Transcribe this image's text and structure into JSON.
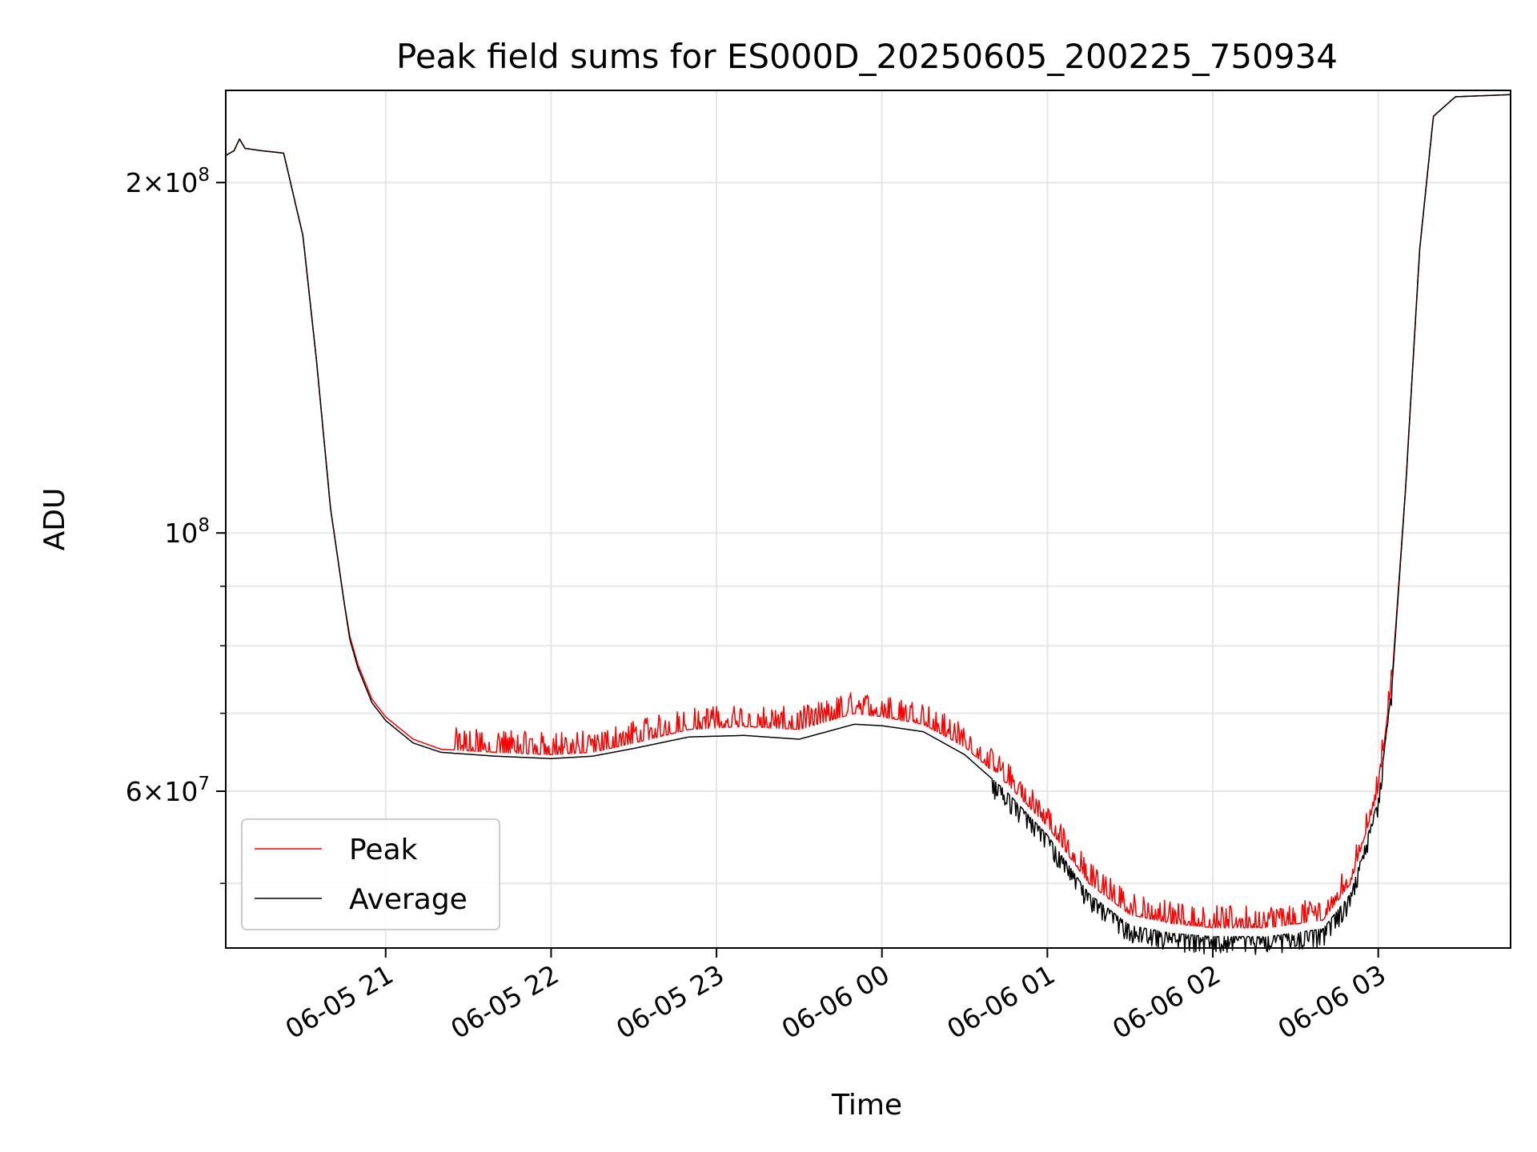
{
  "chart_data": {
    "type": "line",
    "title": "Peak field sums for ES000D_20250605_200225_750934",
    "xlabel": "Time",
    "ylabel": "ADU",
    "yscale": "log",
    "ylim": [
      44000000,
      240000000
    ],
    "xlim": [
      "2025-06-05 20:02",
      "2025-06-06 03:48"
    ],
    "grid": true,
    "legend_position": "lower-left",
    "x_ticks": [
      {
        "x": "2025-06-05 21:00",
        "label": "06-05 21"
      },
      {
        "x": "2025-06-05 22:00",
        "label": "06-05 22"
      },
      {
        "x": "2025-06-05 23:00",
        "label": "06-05 23"
      },
      {
        "x": "2025-06-06 00:00",
        "label": "06-06 00"
      },
      {
        "x": "2025-06-06 01:00",
        "label": "06-06 01"
      },
      {
        "x": "2025-06-06 02:00",
        "label": "06-06 02"
      },
      {
        "x": "2025-06-06 03:00",
        "label": "06-06 03"
      }
    ],
    "y_major_ticks": [
      {
        "y": 60000000,
        "mant": "6",
        "exp": "7"
      },
      {
        "y": 100000000,
        "mant": "",
        "exp": "8"
      },
      {
        "y": 200000000,
        "mant": "2",
        "exp": "8"
      }
    ],
    "y_minor_ticks": [
      50000000,
      70000000,
      80000000,
      90000000
    ],
    "series": [
      {
        "name": "Peak",
        "color": "#ff0000",
        "noise": {
          "start": "2025-06-05 21:25",
          "amplitude": 0.045,
          "direction": "up"
        },
        "points": [
          [
            "2025-06-05 20:02",
            211000000
          ],
          [
            "2025-06-05 20:05",
            213000000
          ],
          [
            "2025-06-05 20:07",
            218000000
          ],
          [
            "2025-06-05 20:09",
            214000000
          ],
          [
            "2025-06-05 20:15",
            213000000
          ],
          [
            "2025-06-05 20:23",
            212000000
          ],
          [
            "2025-06-05 20:30",
            180000000
          ],
          [
            "2025-06-05 20:35",
            140000000
          ],
          [
            "2025-06-05 20:40",
            105000000
          ],
          [
            "2025-06-05 20:45",
            87000000
          ],
          [
            "2025-06-05 20:47",
            81500000
          ],
          [
            "2025-06-05 20:50",
            77000000
          ],
          [
            "2025-06-05 20:55",
            72000000
          ],
          [
            "2025-06-05 21:00",
            69500000
          ],
          [
            "2025-06-05 21:10",
            66500000
          ],
          [
            "2025-06-05 21:20",
            65200000
          ],
          [
            "2025-06-05 21:40",
            64800000
          ],
          [
            "2025-06-05 22:00",
            64500000
          ],
          [
            "2025-06-05 22:15",
            64800000
          ],
          [
            "2025-06-05 22:30",
            66000000
          ],
          [
            "2025-06-05 22:50",
            67800000
          ],
          [
            "2025-06-05 23:10",
            68200000
          ],
          [
            "2025-06-05 23:30",
            67800000
          ],
          [
            "2025-06-05 23:50",
            70000000
          ],
          [
            "2025-06-06 00:00",
            69500000
          ],
          [
            "2025-06-06 00:15",
            68500000
          ],
          [
            "2025-06-06 00:30",
            65500000
          ],
          [
            "2025-06-06 00:45",
            61000000
          ],
          [
            "2025-06-06 01:00",
            56000000
          ],
          [
            "2025-06-06 01:15",
            50000000
          ],
          [
            "2025-06-06 01:30",
            47000000
          ],
          [
            "2025-06-06 01:45",
            46200000
          ],
          [
            "2025-06-06 02:00",
            45800000
          ],
          [
            "2025-06-06 02:20",
            45800000
          ],
          [
            "2025-06-06 02:40",
            46500000
          ],
          [
            "2025-06-06 02:50",
            50000000
          ],
          [
            "2025-06-06 03:00",
            60000000
          ],
          [
            "2025-06-06 03:05",
            75000000
          ],
          [
            "2025-06-06 03:10",
            110000000
          ],
          [
            "2025-06-06 03:15",
            175000000
          ],
          [
            "2025-06-06 03:20",
            228000000
          ],
          [
            "2025-06-06 03:28",
            237000000
          ],
          [
            "2025-06-06 03:48",
            238000000
          ]
        ]
      },
      {
        "name": "Average",
        "color": "#000000",
        "noise": {
          "start": "2025-06-06 00:40",
          "amplitude": 0.035,
          "direction": "down"
        },
        "points": [
          [
            "2025-06-05 20:02",
            211000000
          ],
          [
            "2025-06-05 20:05",
            213000000
          ],
          [
            "2025-06-05 20:07",
            218000000
          ],
          [
            "2025-06-05 20:09",
            214000000
          ],
          [
            "2025-06-05 20:15",
            213000000
          ],
          [
            "2025-06-05 20:23",
            212000000
          ],
          [
            "2025-06-05 20:30",
            180000000
          ],
          [
            "2025-06-05 20:35",
            140000000
          ],
          [
            "2025-06-05 20:40",
            105000000
          ],
          [
            "2025-06-05 20:45",
            87000000
          ],
          [
            "2025-06-05 20:47",
            81000000
          ],
          [
            "2025-06-05 20:50",
            76500000
          ],
          [
            "2025-06-05 20:55",
            71500000
          ],
          [
            "2025-06-05 21:00",
            69000000
          ],
          [
            "2025-06-05 21:10",
            66000000
          ],
          [
            "2025-06-05 21:20",
            64800000
          ],
          [
            "2025-06-05 21:40",
            64300000
          ],
          [
            "2025-06-05 22:00",
            64000000
          ],
          [
            "2025-06-05 22:15",
            64300000
          ],
          [
            "2025-06-05 22:30",
            65300000
          ],
          [
            "2025-06-05 22:50",
            66800000
          ],
          [
            "2025-06-05 23:10",
            67000000
          ],
          [
            "2025-06-05 23:30",
            66500000
          ],
          [
            "2025-06-05 23:50",
            68500000
          ],
          [
            "2025-06-06 00:00",
            68300000
          ],
          [
            "2025-06-06 00:15",
            67500000
          ],
          [
            "2025-06-06 00:30",
            64500000
          ],
          [
            "2025-06-06 00:45",
            60000000
          ],
          [
            "2025-06-06 01:00",
            55000000
          ],
          [
            "2025-06-06 01:15",
            49000000
          ],
          [
            "2025-06-06 01:30",
            46000000
          ],
          [
            "2025-06-06 01:45",
            45300000
          ],
          [
            "2025-06-06 02:00",
            45000000
          ],
          [
            "2025-06-06 02:20",
            45000000
          ],
          [
            "2025-06-06 02:40",
            45700000
          ],
          [
            "2025-06-06 02:50",
            49000000
          ],
          [
            "2025-06-06 03:00",
            59000000
          ],
          [
            "2025-06-06 03:05",
            74000000
          ],
          [
            "2025-06-06 03:10",
            110000000
          ],
          [
            "2025-06-06 03:15",
            175000000
          ],
          [
            "2025-06-06 03:20",
            228000000
          ],
          [
            "2025-06-06 03:28",
            237000000
          ],
          [
            "2025-06-06 03:48",
            238000000
          ]
        ]
      }
    ]
  }
}
